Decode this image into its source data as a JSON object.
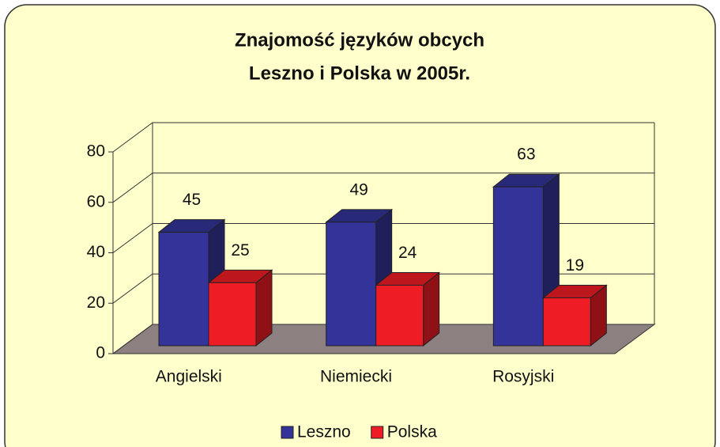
{
  "chart_data": {
    "type": "bar3d",
    "title": "Znajomość języków obcych",
    "subtitle": "Leszno i Polska w 2005r.",
    "categories": [
      "Angielski",
      "Niemiecki",
      "Rosyjski"
    ],
    "series": [
      {
        "name": "Leszno",
        "color": "#333399",
        "values": [
          45,
          49,
          63
        ]
      },
      {
        "name": "Polska",
        "color": "#ee1c24",
        "values": [
          25,
          24,
          19
        ]
      }
    ],
    "ylim": [
      0,
      80
    ],
    "yticks": [
      0,
      20,
      40,
      60,
      80
    ],
    "grid": true,
    "legend": "bottom"
  }
}
